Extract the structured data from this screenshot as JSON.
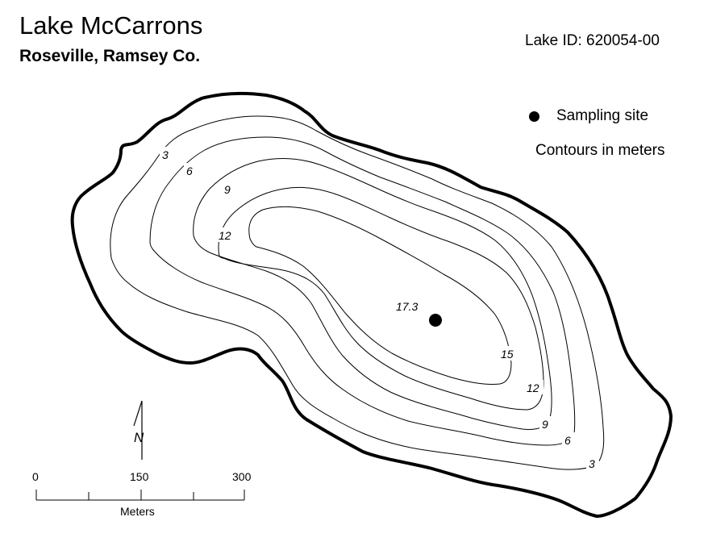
{
  "header": {
    "title": "Lake McCarrons",
    "subtitle": "Roseville, Ramsey Co.",
    "lake_id": "Lake ID: 620054-00"
  },
  "legend": {
    "sampling_site_label": "Sampling site",
    "contours_note": "Contours in meters"
  },
  "contour_labels": {
    "c3a": "3",
    "c6a": "6",
    "c9a": "9",
    "c12a": "12",
    "max_depth": "17.3",
    "c15": "15",
    "c12b": "12",
    "c9b": "9",
    "c6b": "6",
    "c3b": "3"
  },
  "north_arrow": {
    "label": "N"
  },
  "scale_bar": {
    "tick_0": "0",
    "tick_150": "150",
    "tick_300": "300",
    "units": "Meters"
  },
  "colors": {
    "ink": "#000000",
    "background": "#ffffff"
  }
}
